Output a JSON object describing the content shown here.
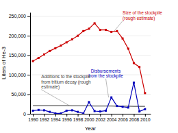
{
  "chart_data": {
    "type": "line",
    "xlabel": "Year",
    "ylabel": "Liters of He-3",
    "x": [
      1990,
      1991,
      1992,
      1993,
      1994,
      1995,
      1996,
      1997,
      1998,
      1999,
      2000,
      2001,
      2002,
      2003,
      2004,
      2005,
      2006,
      2007,
      2008,
      2009,
      2010
    ],
    "series": [
      {
        "color": "#555555",
        "values": [
          21000,
          21000,
          21000,
          21000,
          21000,
          21000,
          21000,
          20500,
          20500,
          20500,
          20500,
          20000,
          20000,
          20000,
          20000,
          19500,
          19500,
          19500,
          19000,
          19000,
          19000
        ]
      },
      {
        "color": "#0000bb",
        "marker": "square",
        "values": [
          8000,
          10000,
          9000,
          5000,
          1000,
          1000,
          8000,
          9000,
          5000,
          1000,
          30000,
          7000,
          6000,
          8000,
          42000,
          20000,
          18000,
          16000,
          80000,
          6000,
          12000
        ]
      },
      {
        "color": "#cc0000",
        "marker": "square",
        "values": [
          135000,
          143000,
          152000,
          161000,
          168000,
          175000,
          183000,
          191000,
          200000,
          212000,
          218000,
          232000,
          215000,
          215000,
          210000,
          212000,
          193000,
          167000,
          130000,
          120000,
          53000
        ]
      }
    ],
    "xlim": [
      1989.5,
      2011.0
    ],
    "xticks": [
      1990,
      1992,
      1994,
      1996,
      1998,
      2000,
      2002,
      2004,
      2006,
      2008,
      2010
    ],
    "ylim": [
      0,
      260000
    ],
    "yticks": [
      0,
      {
        "value": 50000,
        "label": "50,000"
      },
      {
        "value": 100000,
        "label": "100,000"
      },
      {
        "value": 150000,
        "label": "150,000"
      },
      {
        "value": 200000,
        "label": "200,000"
      },
      {
        "value": 250000,
        "label": "250,000"
      }
    ],
    "grid": true,
    "annotations": [
      {
        "text": "Size of the stockpile\n(rough estimate)",
        "xy": [
          2004.5,
          212000
        ],
        "xytext": [
          2006,
          238000
        ],
        "color": "#cc0000"
      },
      {
        "text": "Disbursements\nfrom the stockpile",
        "xy": [
          2003.5,
          42000
        ],
        "xytext": [
          2003.0,
          90000
        ],
        "color": "#0000bb"
      },
      {
        "text": "Additions to the stockpile\nfrom tritium decay (rough\nestimate)",
        "xy": [
          1996.5,
          21000
        ],
        "xytext": [
          1991.5,
          62000
        ],
        "color": "#444444"
      }
    ]
  }
}
